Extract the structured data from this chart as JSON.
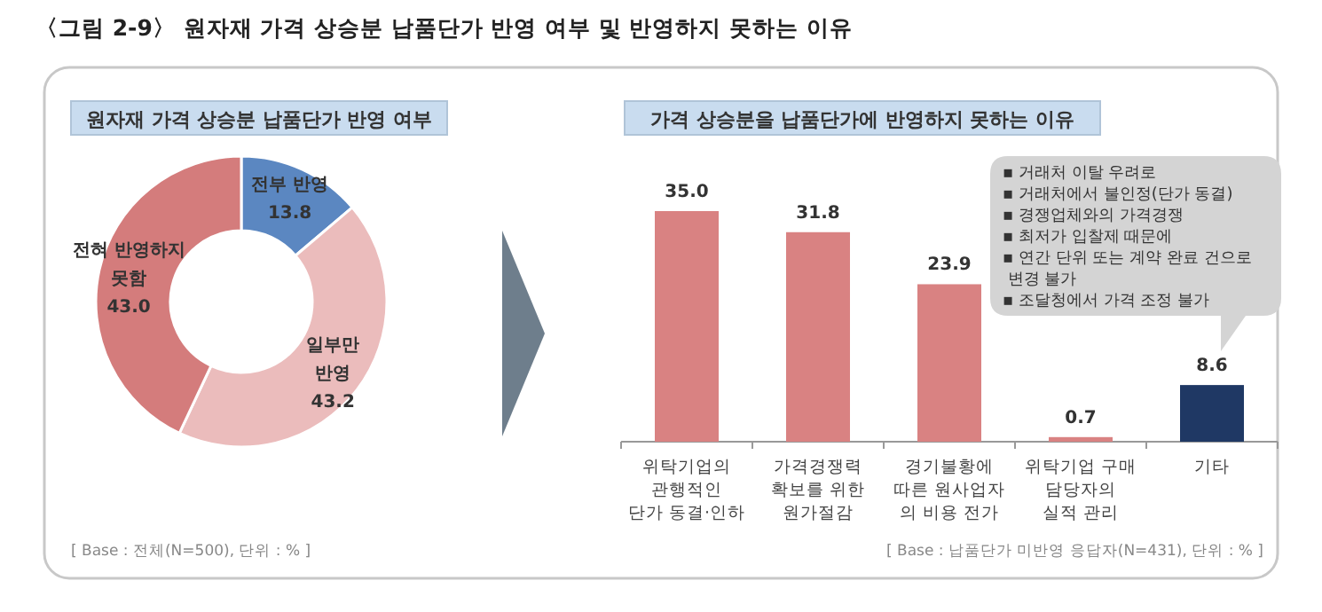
{
  "chart_data": [
    {
      "type": "donut",
      "title": "〈그림 2-9〉 원자재 가격 상승분 납품단가 반영 여부 및 반영하지 못하는 이유",
      "subtitle": "원자재 가격 상승분 납품단가 반영 여부",
      "categories": [
        "전부 반영",
        "일부만\n반영",
        "전혀 반영하지\n못함"
      ],
      "values": [
        13.8,
        43.2,
        43.0
      ],
      "colors": [
        "#5b87c1",
        "#ebbcbc",
        "#d47c7c"
      ],
      "value_labels": [
        "13.8",
        "43.2",
        "43.0"
      ],
      "annotations": [
        "[ Base : 전체(N=500), 단위 : % ]"
      ]
    },
    {
      "type": "bar",
      "subtitle": "가격 상승분을 납품단가에 반영하지 못하는 이유",
      "categories": [
        "위탁기업의\n관행적인\n단가 동결·인하",
        "가격경쟁력\n확보를 위한\n원가절감",
        "경기불황에\n따른 원사업자\n의 비용 전가",
        "위탁기업 구매\n담당자의\n실적 관리",
        "기타"
      ],
      "values": [
        35.0,
        31.8,
        23.9,
        0.7,
        8.6
      ],
      "colors": [
        "#d98282",
        "#d98282",
        "#d98282",
        "#d98282",
        "#1f3864"
      ],
      "value_labels": [
        "35.0",
        "31.8",
        "23.9",
        "0.7",
        "8.6"
      ],
      "annotations": [
        "▪ 거래처 이탈 우려로\n▪ 거래처에서 불인정(단가 동결)\n▪ 경쟁업체와의 가격경쟁\n▪ 최저가 입찰제 때문에\n▪ 연간 단위 또는 계약 완료 건으로\n   변경 불가\n▪ 조달청에서 가격 조정 불가",
        "[ Base : 납품단가 미반영 응답자(N=431), 단위 : % ]"
      ]
    }
  ]
}
